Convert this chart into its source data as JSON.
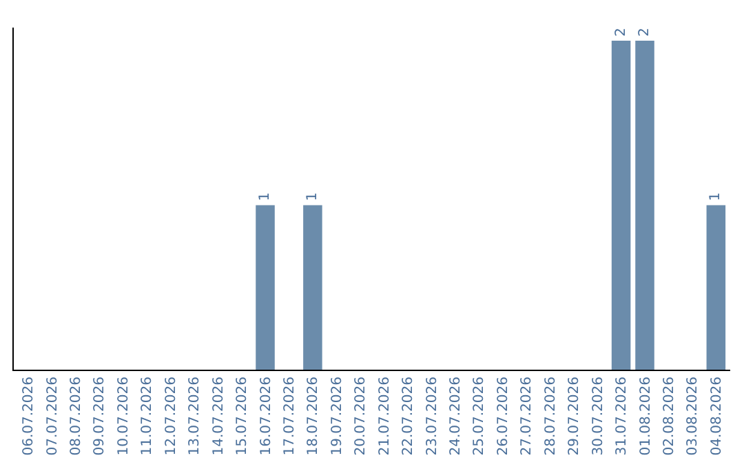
{
  "chart_data": {
    "type": "bar",
    "categories": [
      "06.07.2026",
      "07.07.2026",
      "08.07.2026",
      "09.07.2026",
      "10.07.2026",
      "11.07.2026",
      "12.07.2026",
      "13.07.2026",
      "14.07.2026",
      "15.07.2026",
      "16.07.2026",
      "17.07.2026",
      "18.07.2026",
      "19.07.2026",
      "20.07.2026",
      "21.07.2026",
      "22.07.2026",
      "23.07.2026",
      "24.07.2026",
      "25.07.2026",
      "26.07.2026",
      "27.07.2026",
      "28.07.2026",
      "29.07.2026",
      "30.07.2026",
      "31.07.2026",
      "01.08.2026",
      "02.08.2026",
      "03.08.2026",
      "04.08.2026"
    ],
    "values": [
      0,
      0,
      0,
      0,
      0,
      0,
      0,
      0,
      0,
      0,
      1,
      0,
      1,
      0,
      0,
      0,
      0,
      0,
      0,
      0,
      0,
      0,
      0,
      0,
      0,
      2,
      2,
      0,
      0,
      1
    ],
    "value_labels": [
      null,
      null,
      null,
      null,
      null,
      null,
      null,
      null,
      null,
      null,
      "1",
      null,
      "1",
      null,
      null,
      null,
      null,
      null,
      null,
      null,
      null,
      null,
      null,
      null,
      null,
      "2",
      "2",
      null,
      null,
      "1"
    ],
    "color": "#6b8cab",
    "tick_labels": "x"
  }
}
